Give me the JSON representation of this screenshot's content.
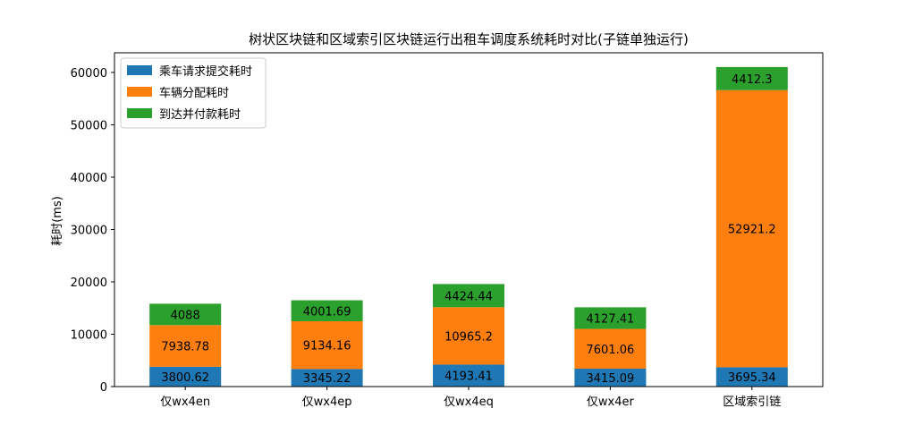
{
  "chart_data": {
    "type": "bar",
    "stacked": true,
    "title": "树状区块链和区域索引区块链运行出租车调度系统耗时对比(子链单独运行)",
    "xlabel": "",
    "ylabel": "耗时(ms)",
    "ylim": [
      0,
      63750
    ],
    "yticks": [
      0,
      10000,
      20000,
      30000,
      40000,
      50000,
      60000
    ],
    "grid": false,
    "legend_position": "top-left",
    "categories": [
      "仅wx4en",
      "仅wx4ep",
      "仅wx4eq",
      "仅wx4er",
      "区域索引链"
    ],
    "series": [
      {
        "name": "乘车请求提交耗时",
        "color": "#1f77b4",
        "values": [
          3800.62,
          3345.22,
          4193.41,
          3415.09,
          3695.34
        ]
      },
      {
        "name": "车辆分配耗时",
        "color": "#ff7f0e",
        "values": [
          7938.78,
          9134.16,
          10965.2,
          7601.06,
          52921.2
        ]
      },
      {
        "name": "到达并付款耗时",
        "color": "#2ca02c",
        "values": [
          4088,
          4001.69,
          4424.44,
          4127.41,
          4412.3
        ]
      }
    ],
    "data_labels": [
      [
        "3800.62",
        "3345.22",
        "4193.41",
        "3415.09",
        "3695.34"
      ],
      [
        "7938.78",
        "9134.16",
        "10965.2",
        "7601.06",
        "52921.2"
      ],
      [
        "4088",
        "4001.69",
        "4424.44",
        "4127.41",
        "4412.3"
      ]
    ]
  }
}
